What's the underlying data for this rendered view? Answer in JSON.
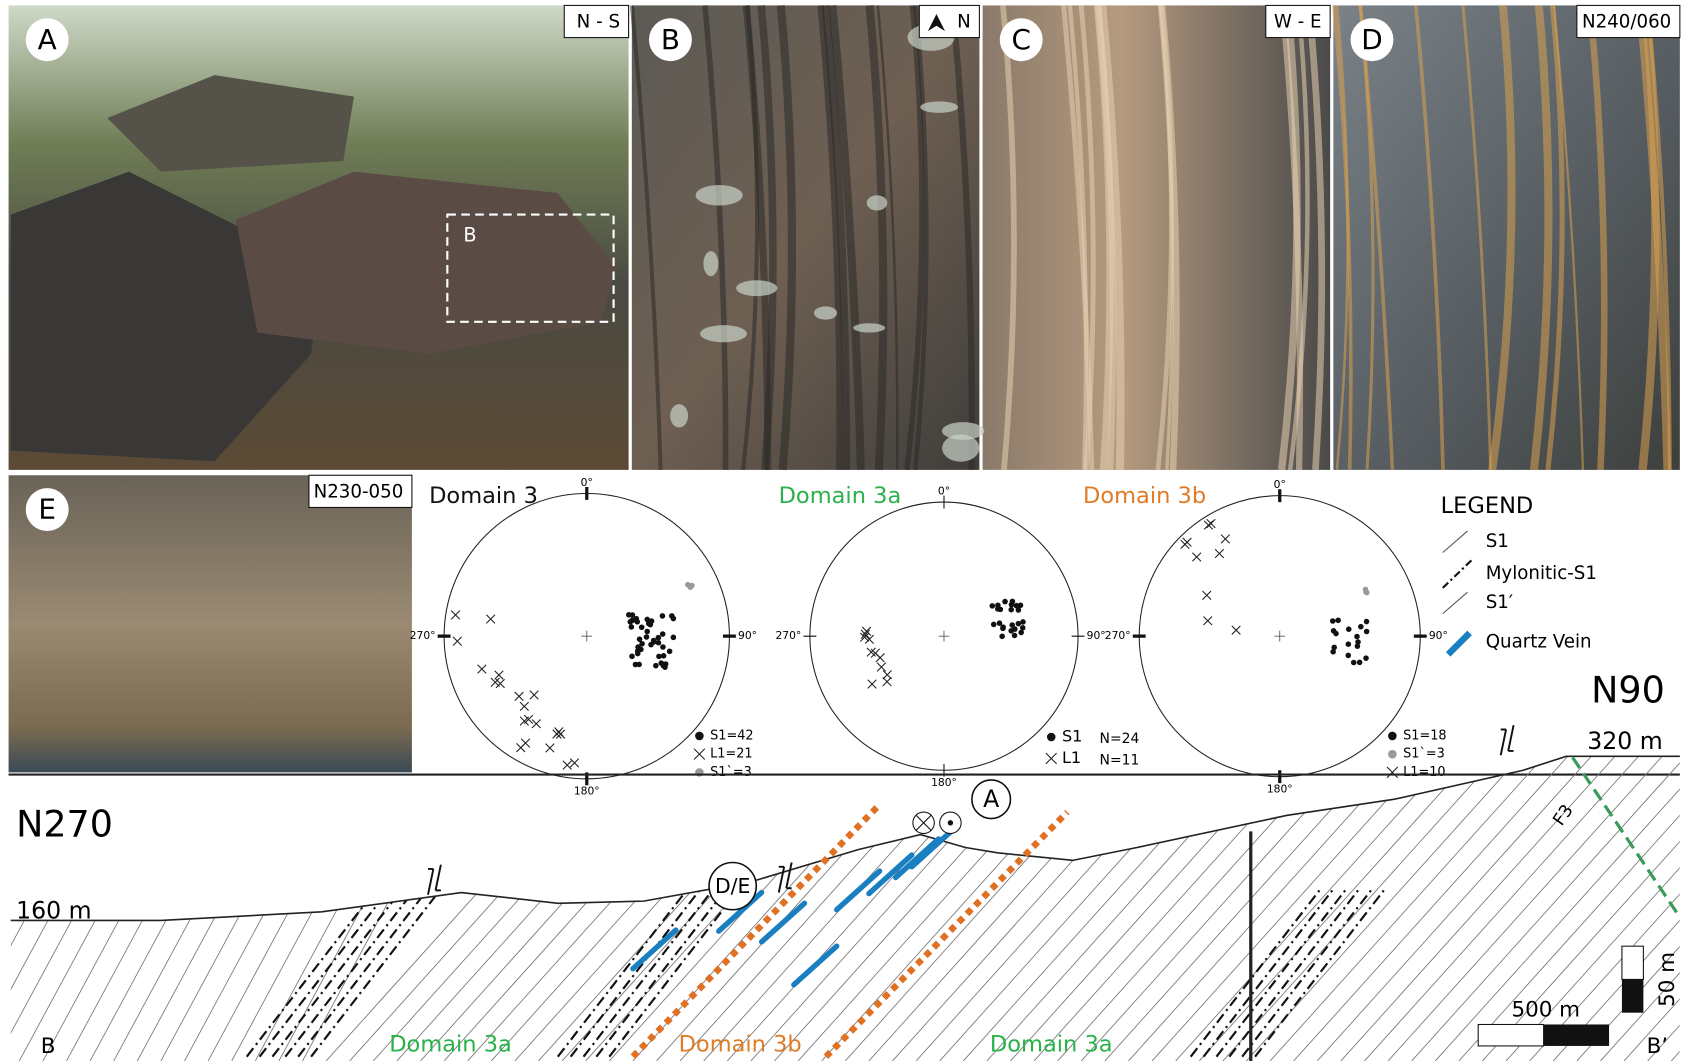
{
  "panels": [
    {
      "label": "A",
      "orientation": "N - S",
      "inset_label": "B"
    },
    {
      "label": "B",
      "orientation": "N"
    },
    {
      "label": "C",
      "orientation": "W - E"
    },
    {
      "label": "D",
      "orientation": "N240/060"
    },
    {
      "label": "E",
      "orientation": "N230-050"
    }
  ],
  "stereonets": [
    {
      "title": "Domain 3",
      "north": "0°",
      "west": "270°",
      "east": "90°",
      "south": "180°",
      "legend": [
        "S1=42",
        "L1=21",
        "S1`=3"
      ]
    },
    {
      "title": "Domain 3a",
      "north": "0°",
      "west": "270°",
      "east": "90°",
      "south": "180°",
      "legend": [
        "S1",
        "L1"
      ],
      "counts": [
        "N=24",
        "N=11"
      ]
    },
    {
      "title": "Domain 3b",
      "north": "0°",
      "west": "270°",
      "east": "90°",
      "south": "180°",
      "legend": [
        "S1=18",
        "S1`=3",
        "L1=10"
      ]
    }
  ],
  "legend": {
    "title": "LEGEND",
    "items": [
      "S1",
      "Mylonitic-S1",
      "S1′",
      "Quartz Vein"
    ]
  },
  "section": {
    "west": "N270",
    "east": "N90",
    "west_elevation": "160 m",
    "east_elevation": "320 m",
    "start": "B",
    "end": "B’",
    "domains": [
      "Domain 3a",
      "Domain 3b",
      "Domain 3a"
    ],
    "markers": [
      "A",
      "D/E"
    ],
    "fault": "F3",
    "scale_h": "500 m",
    "scale_v": "50 m"
  }
}
